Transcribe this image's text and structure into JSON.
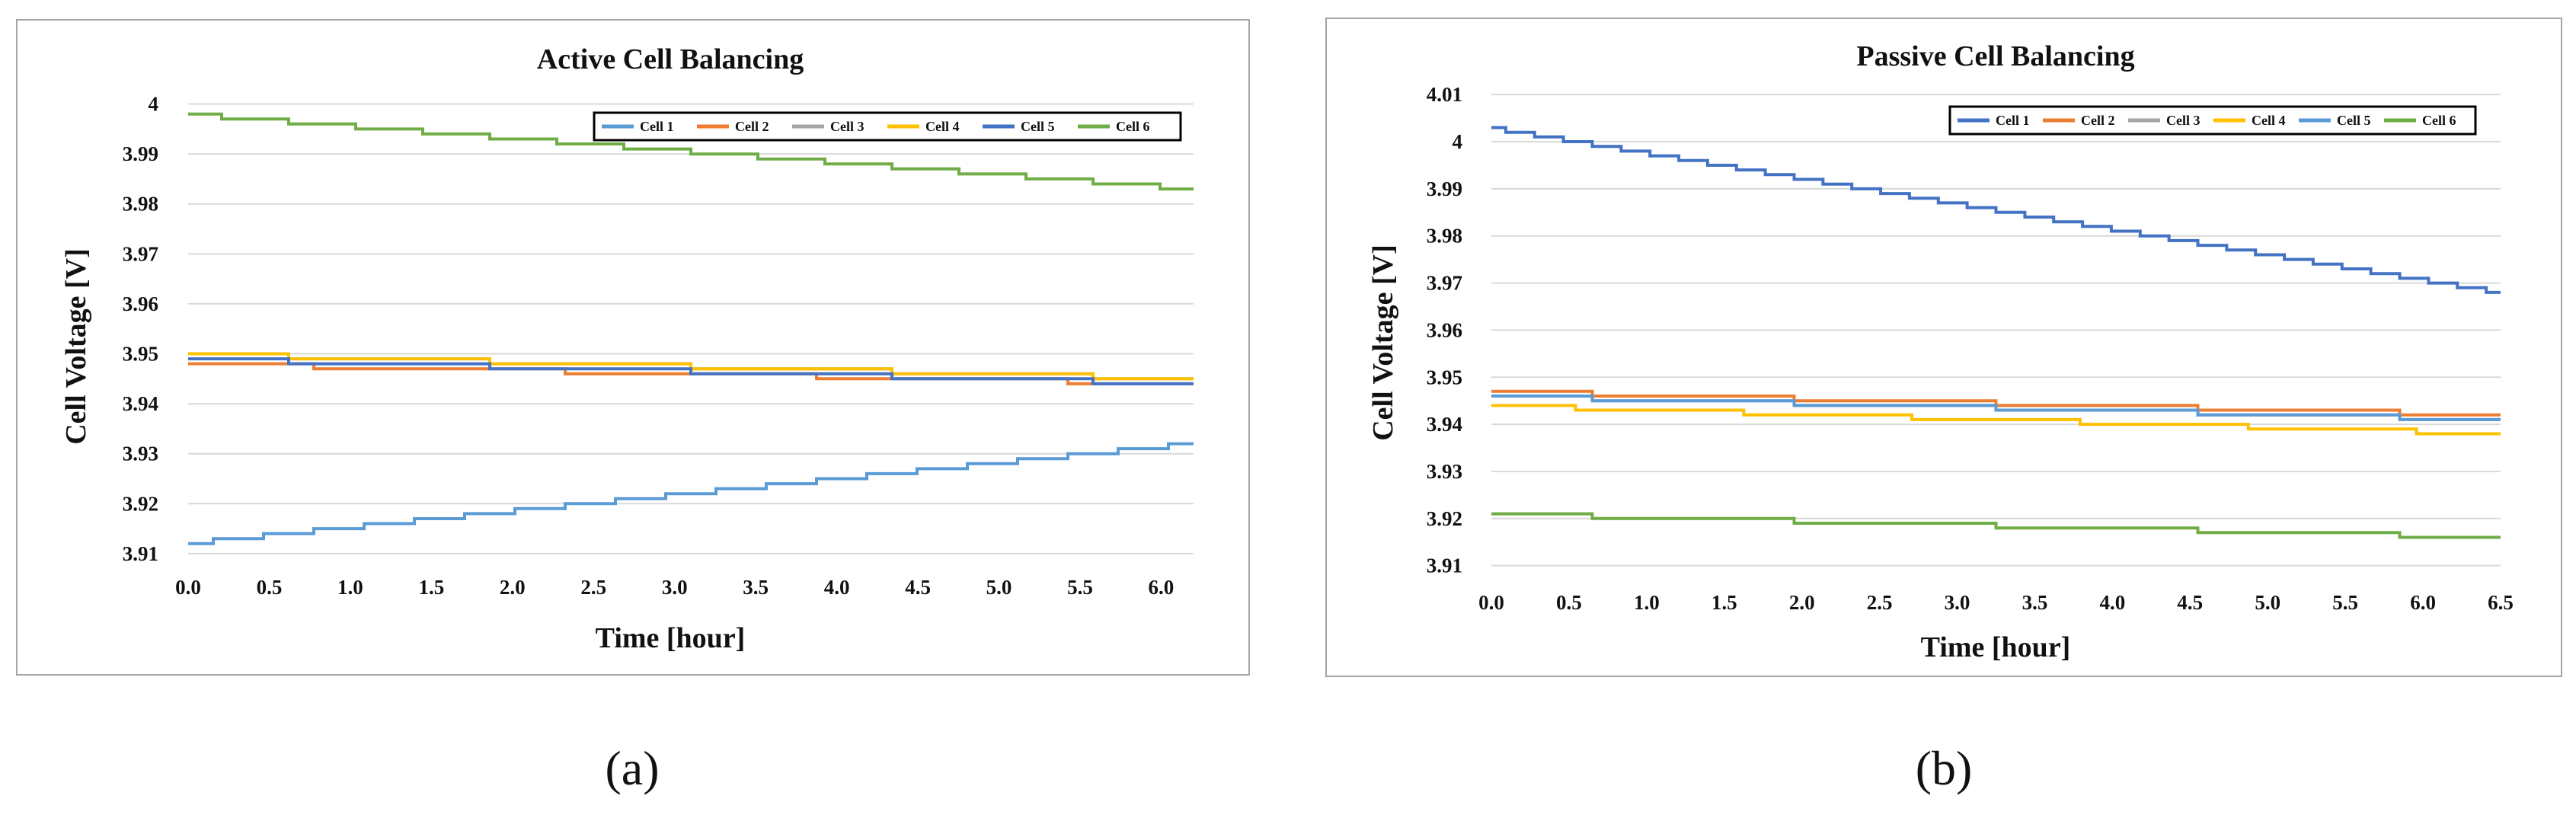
{
  "chart_data": [
    {
      "type": "line",
      "title": "Active Cell Balancing",
      "xlabel": "Time [hour]",
      "ylabel": "Cell Voltage [V]",
      "panel_label": "(a)",
      "xlim": [
        0,
        6.2
      ],
      "ylim": [
        3.908,
        4.001
      ],
      "xticks": [
        0,
        0.5,
        1,
        1.5,
        2,
        2.5,
        3,
        3.5,
        4,
        4.5,
        5,
        5.5,
        6
      ],
      "xtick_labels": [
        "0.0",
        "0.5",
        "1.0",
        "1.5",
        "2.0",
        "2.5",
        "3.0",
        "3.5",
        "4.0",
        "4.5",
        "5.0",
        "5.5",
        "6.0"
      ],
      "yticks": [
        3.91,
        3.92,
        3.93,
        3.94,
        3.95,
        3.96,
        3.97,
        3.98,
        3.99,
        4.0
      ],
      "ytick_labels": [
        "3.91",
        "3.92",
        "3.93",
        "3.94",
        "3.95",
        "3.96",
        "3.97",
        "3.98",
        "3.99",
        "4"
      ],
      "grid": true,
      "legend_position": "top-right",
      "series": [
        {
          "name": "Cell 1",
          "color": "#5b9bd5",
          "x": [
            0,
            6.2
          ],
          "y": [
            3.912,
            3.932
          ]
        },
        {
          "name": "Cell 2",
          "color": "#ed7d31",
          "x": [
            0,
            6.2
          ],
          "y": [
            3.948,
            3.944
          ]
        },
        {
          "name": "Cell 3",
          "color": "#a5a5a5",
          "x": [
            0,
            6.2
          ],
          "y": [
            3.95,
            3.945
          ]
        },
        {
          "name": "Cell 4",
          "color": "#ffc000",
          "x": [
            0,
            6.2
          ],
          "y": [
            3.95,
            3.945
          ]
        },
        {
          "name": "Cell 5",
          "color": "#4472c4",
          "x": [
            0,
            6.2
          ],
          "y": [
            3.949,
            3.944
          ]
        },
        {
          "name": "Cell 6",
          "color": "#70ad47",
          "x": [
            0,
            6.2
          ],
          "y": [
            3.998,
            3.983
          ]
        }
      ]
    },
    {
      "type": "line",
      "title": "Passive Cell Balancing",
      "xlabel": "Time [hour]",
      "ylabel": "Cell Voltage [V]",
      "panel_label": "(b)",
      "xlim": [
        0,
        6.5
      ],
      "ylim": [
        3.908,
        4.011
      ],
      "xticks": [
        0,
        0.5,
        1,
        1.5,
        2,
        2.5,
        3,
        3.5,
        4,
        4.5,
        5,
        5.5,
        6,
        6.5
      ],
      "xtick_labels": [
        "0.0",
        "0.5",
        "1.0",
        "1.5",
        "2.0",
        "2.5",
        "3.0",
        "3.5",
        "4.0",
        "4.5",
        "5.0",
        "5.5",
        "6.0",
        "6.5"
      ],
      "yticks": [
        3.91,
        3.92,
        3.93,
        3.94,
        3.95,
        3.96,
        3.97,
        3.98,
        3.99,
        4.0,
        4.01
      ],
      "ytick_labels": [
        "3.91",
        "3.92",
        "3.93",
        "3.94",
        "3.95",
        "3.96",
        "3.97",
        "3.98",
        "3.99",
        "4",
        "4.01"
      ],
      "grid": true,
      "legend_position": "top-right",
      "series": [
        {
          "name": "Cell 1",
          "color": "#4472c4",
          "x": [
            0,
            6.5
          ],
          "y": [
            4.003,
            3.968
          ]
        },
        {
          "name": "Cell 2",
          "color": "#ed7d31",
          "x": [
            0,
            6.5
          ],
          "y": [
            3.947,
            3.942
          ]
        },
        {
          "name": "Cell 3",
          "color": "#a5a5a5",
          "x": [
            0,
            6.5
          ],
          "y": [
            3.946,
            3.941
          ]
        },
        {
          "name": "Cell 4",
          "color": "#ffc000",
          "x": [
            0,
            6.5
          ],
          "y": [
            3.944,
            3.938
          ]
        },
        {
          "name": "Cell 5",
          "color": "#5b9bd5",
          "x": [
            0,
            6.5
          ],
          "y": [
            3.946,
            3.941
          ]
        },
        {
          "name": "Cell 6",
          "color": "#70ad47",
          "x": [
            0,
            6.5
          ],
          "y": [
            3.921,
            3.916
          ]
        }
      ]
    }
  ]
}
